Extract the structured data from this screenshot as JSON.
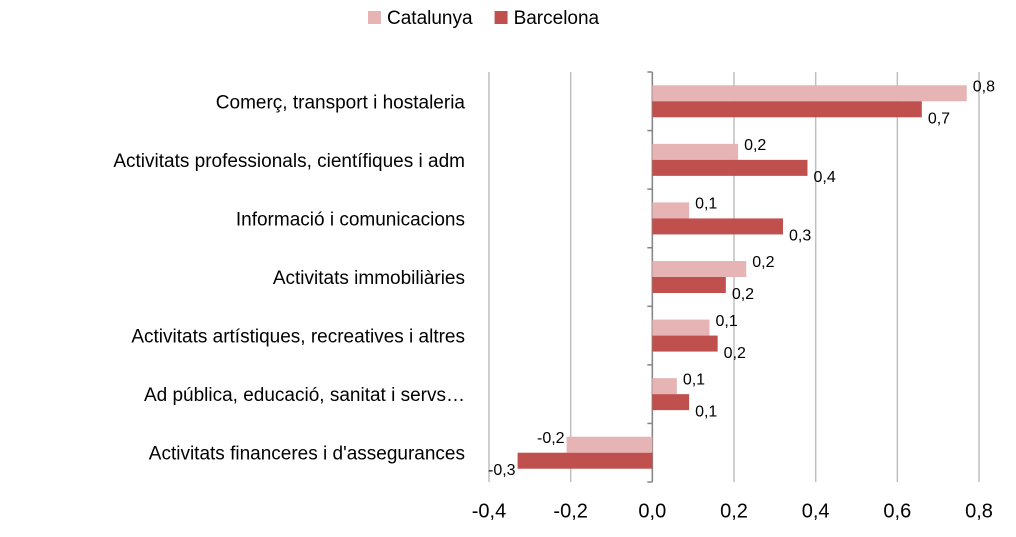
{
  "chart_data": {
    "type": "bar",
    "orientation": "horizontal",
    "categories": [
      "Comerç, transport i hostaleria",
      "Activitats professionals, científiques i adm",
      "Informació i comunicacions",
      "Activitats immobiliàries",
      "Activitats artístiques, recreatives i altres",
      "Ad pública, educació, sanitat i servs…",
      "Activitats financeres i d'assegurances"
    ],
    "series": [
      {
        "name": "Catalunya",
        "color": "#e6b4b4",
        "values": [
          0.77,
          0.21,
          0.09,
          0.23,
          0.14,
          0.06,
          -0.21
        ],
        "value_labels": [
          "0,8",
          "0,2",
          "0,1",
          "0,2",
          "0,1",
          "0,1",
          "-0,2"
        ]
      },
      {
        "name": "Barcelona",
        "color": "#c0504d",
        "values": [
          0.66,
          0.38,
          0.32,
          0.18,
          0.16,
          0.09,
          -0.33
        ],
        "value_labels": [
          "0,7",
          "0,4",
          "0,3",
          "0,2",
          "0,2",
          "0,1",
          "-0,3"
        ]
      }
    ],
    "xlim": [
      -0.4,
      0.8
    ],
    "xticks": [
      {
        "value": -0.4,
        "label": "-0,4"
      },
      {
        "value": -0.2,
        "label": "-0,2"
      },
      {
        "value": 0,
        "label": "0,0"
      },
      {
        "value": 0.2,
        "label": "0,2"
      },
      {
        "value": 0.4,
        "label": "0,4"
      },
      {
        "value": 0.6,
        "label": "0,6"
      },
      {
        "value": 0.8,
        "label": "0,8"
      }
    ],
    "grid": true,
    "legend": "top"
  }
}
